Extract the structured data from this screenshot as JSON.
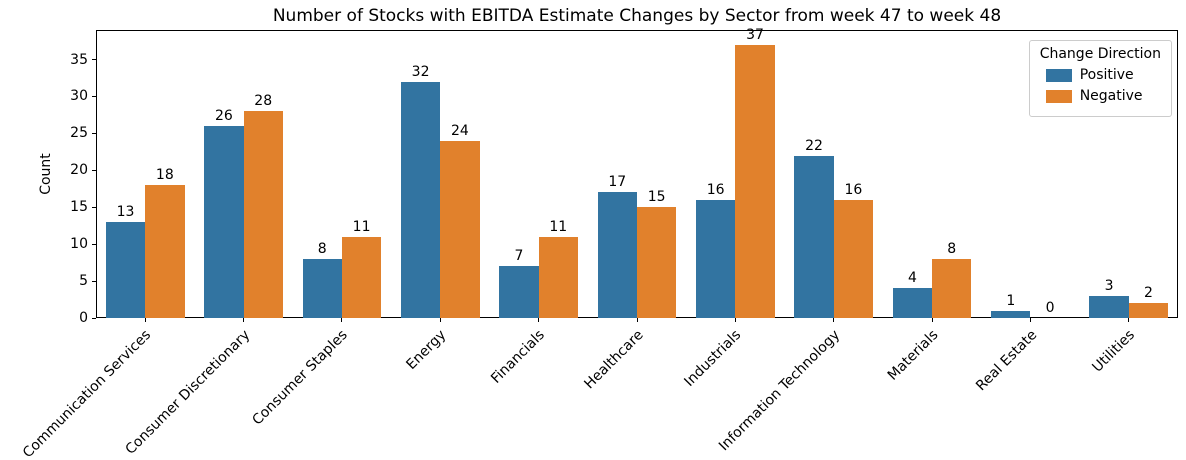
{
  "title": "Number of Stocks with EBITDA Estimate Changes by Sector from week 47 to week 48",
  "chart_data": {
    "type": "bar",
    "title": "Number of Stocks with EBITDA Estimate Changes by Sector from week 47 to week 48",
    "categories": [
      "Communication Services",
      "Consumer Discretionary",
      "Consumer Staples",
      "Energy",
      "Financials",
      "Healthcare",
      "Industrials",
      "Information Technology",
      "Materials",
      "Real Estate",
      "Utilities"
    ],
    "series": [
      {
        "name": "Positive",
        "color": "#3274a1",
        "values": [
          13,
          26,
          8,
          32,
          7,
          17,
          16,
          22,
          4,
          1,
          3
        ]
      },
      {
        "name": "Negative",
        "color": "#e1812c",
        "values": [
          18,
          28,
          11,
          24,
          11,
          15,
          37,
          16,
          8,
          0,
          2
        ]
      }
    ],
    "xlabel": "",
    "ylabel": "Count",
    "ylim": [
      0,
      39
    ],
    "yticks": [
      0,
      5,
      10,
      15,
      20,
      25,
      30,
      35
    ],
    "grid": false,
    "bar_value_labels": true,
    "legend": {
      "title": "Change Direction",
      "position": "upper right",
      "entries": [
        "Positive",
        "Negative"
      ]
    }
  }
}
